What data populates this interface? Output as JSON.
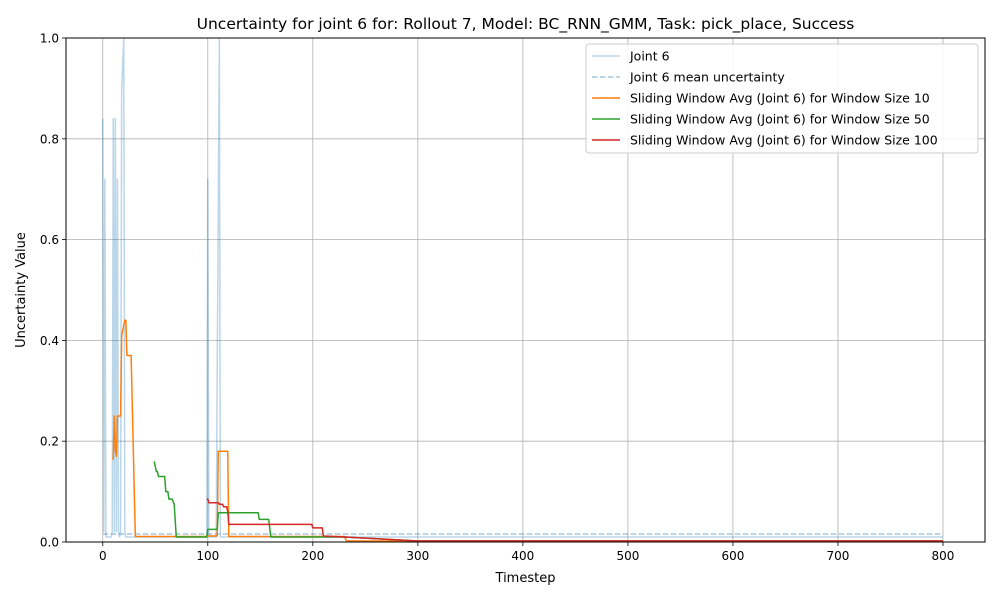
{
  "chart_data": {
    "type": "line",
    "title": "Uncertainty for joint 6 for: Rollout 7, Model: BC_RNN_GMM, Task: pick_place, Success",
    "xlabel": "Timestep",
    "ylabel": "Uncertainty Value",
    "xlim": [
      -35,
      840
    ],
    "ylim": [
      0,
      1.0
    ],
    "xticks": [
      0,
      100,
      200,
      300,
      400,
      500,
      600,
      700,
      800
    ],
    "yticks": [
      0.0,
      0.2,
      0.4,
      0.6,
      0.8,
      1.0
    ],
    "ytick_labels": [
      "0.0",
      "0.2",
      "0.4",
      "0.6",
      "0.8",
      "1.0"
    ],
    "grid": true,
    "legend_position": "top-right",
    "series": [
      {
        "name": "Joint 6",
        "color": "#1f77b4",
        "opacity": 0.3,
        "dash": "solid",
        "points": [
          [
            0,
            0.84
          ],
          [
            1,
            0.02
          ],
          [
            2,
            0.72
          ],
          [
            3,
            0.01
          ],
          [
            8,
            0.01
          ],
          [
            9,
            0.02
          ],
          [
            10,
            0.84
          ],
          [
            11,
            0.02
          ],
          [
            12,
            0.84
          ],
          [
            13,
            0.02
          ],
          [
            14,
            0.72
          ],
          [
            15,
            0.02
          ],
          [
            16,
            0.01
          ],
          [
            17,
            0.02
          ],
          [
            18,
            0.9
          ],
          [
            20,
            1.0
          ],
          [
            21,
            0.02
          ],
          [
            22,
            0.01
          ],
          [
            99,
            0.01
          ],
          [
            100,
            0.72
          ],
          [
            101,
            0.01
          ],
          [
            108,
            0.01
          ],
          [
            111,
            1.0
          ],
          [
            112,
            0.01
          ],
          [
            800,
            0.01
          ]
        ]
      },
      {
        "name": "Joint 6 mean uncertainty",
        "color": "#1f77b4",
        "opacity": 0.4,
        "dash": "dashed",
        "points": [
          [
            0,
            0.016
          ],
          [
            800,
            0.016
          ]
        ]
      },
      {
        "name": "Sliding Window Avg (Joint 6) for Window Size 10",
        "color": "#ff7f0e",
        "opacity": 1,
        "dash": "solid",
        "points": [
          [
            9,
            0.165
          ],
          [
            10,
            0.165
          ],
          [
            10,
            0.17
          ],
          [
            11,
            0.25
          ],
          [
            12,
            0.18
          ],
          [
            13,
            0.17
          ],
          [
            14,
            0.25
          ],
          [
            17,
            0.25
          ],
          [
            18,
            0.41
          ],
          [
            21,
            0.44
          ],
          [
            22,
            0.44
          ],
          [
            23,
            0.37
          ],
          [
            27,
            0.37
          ],
          [
            31,
            0.011
          ],
          [
            99,
            0.011
          ],
          [
            100,
            0.012
          ],
          [
            109,
            0.012
          ],
          [
            110,
            0.18
          ],
          [
            119,
            0.18
          ],
          [
            120,
            0.011
          ],
          [
            230,
            0.011
          ],
          [
            232,
            0.002
          ],
          [
            800,
            0.002
          ]
        ]
      },
      {
        "name": "Sliding Window Avg (Joint 6) for Window Size 50",
        "color": "#2ca02c",
        "opacity": 1,
        "dash": "solid",
        "points": [
          [
            49,
            0.16
          ],
          [
            50,
            0.15
          ],
          [
            51,
            0.14
          ],
          [
            52,
            0.14
          ],
          [
            53,
            0.13
          ],
          [
            59,
            0.13
          ],
          [
            60,
            0.1
          ],
          [
            62,
            0.1
          ],
          [
            63,
            0.085
          ],
          [
            66,
            0.085
          ],
          [
            68,
            0.075
          ],
          [
            70,
            0.01
          ],
          [
            99,
            0.01
          ],
          [
            100,
            0.025
          ],
          [
            109,
            0.025
          ],
          [
            110,
            0.058
          ],
          [
            148,
            0.058
          ],
          [
            149,
            0.045
          ],
          [
            158,
            0.045
          ],
          [
            160,
            0.01
          ],
          [
            230,
            0.01
          ],
          [
            300,
            0.002
          ],
          [
            800,
            0.002
          ]
        ]
      },
      {
        "name": "Sliding Window Avg (Joint 6) for Window Size 100",
        "color": "#d62728",
        "opacity": 1,
        "dash": "solid",
        "points": [
          [
            99,
            0.085
          ],
          [
            100,
            0.085
          ],
          [
            101,
            0.078
          ],
          [
            110,
            0.078
          ],
          [
            111,
            0.075
          ],
          [
            114,
            0.075
          ],
          [
            115,
            0.07
          ],
          [
            118,
            0.07
          ],
          [
            119,
            0.06
          ],
          [
            120,
            0.035
          ],
          [
            199,
            0.035
          ],
          [
            200,
            0.028
          ],
          [
            209,
            0.028
          ],
          [
            210,
            0.012
          ],
          [
            230,
            0.01
          ],
          [
            300,
            0.002
          ],
          [
            800,
            0.002
          ]
        ]
      }
    ]
  }
}
